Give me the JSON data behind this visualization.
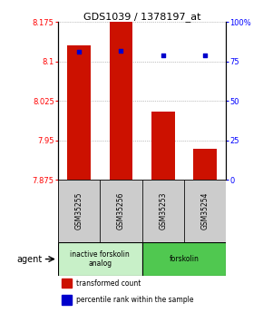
{
  "title": "GDS1039 / 1378197_at",
  "samples": [
    "GSM35255",
    "GSM35256",
    "GSM35253",
    "GSM35254"
  ],
  "red_values": [
    8.13,
    8.175,
    8.005,
    7.935
  ],
  "blue_values": [
    81,
    82,
    79,
    79
  ],
  "ylim_left": [
    7.875,
    8.175
  ],
  "ylim_right": [
    0,
    100
  ],
  "yticks_left": [
    7.875,
    7.95,
    8.025,
    8.1,
    8.175
  ],
  "yticks_right": [
    0,
    25,
    50,
    75,
    100
  ],
  "ytick_labels_left": [
    "7.875",
    "7.95",
    "8.025",
    "8.1",
    "8.175"
  ],
  "ytick_labels_right": [
    "0",
    "25",
    "50",
    "75",
    "100%"
  ],
  "agent_groups": [
    {
      "label": "inactive forskolin\nanalog",
      "span": [
        0,
        2
      ],
      "color": "#c8f0c8"
    },
    {
      "label": "forskolin",
      "span": [
        2,
        4
      ],
      "color": "#50c850"
    }
  ],
  "bar_color": "#cc1100",
  "dot_color": "#0000cc",
  "bar_width": 0.55,
  "grid_color": "#888888",
  "sample_box_color": "#cccccc",
  "agent_label": "agent"
}
